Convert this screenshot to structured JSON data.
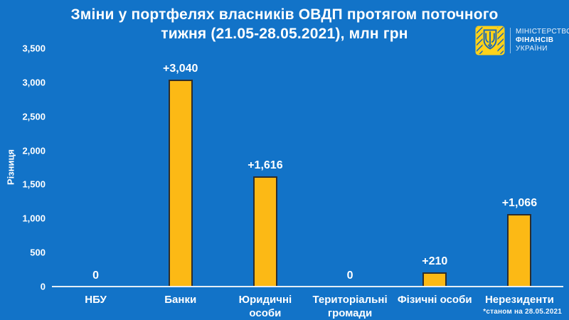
{
  "title": {
    "line1": "Зміни у портфелях власників ОВДП протягом поточного",
    "line2": "тижня (21.05-28.05.2021), млн грн"
  },
  "logo": {
    "ministry_line1": "МІНІСТЕРСТВО",
    "ministry_line2": "ФІНАНСІВ",
    "ministry_line3": "УКРАЇНИ",
    "emblem_icon": "tryzub-shield-emblem"
  },
  "colors": {
    "background": "#1273C8",
    "bar_fill": "#FCB915",
    "bar_border": "#2D2D2D",
    "emblem_yellow": "#FFD21A",
    "emblem_blue": "#1565B8",
    "text": "#FFFFFF",
    "axis_line": "#E3EDF6"
  },
  "chart_data": {
    "type": "bar",
    "title": "Зміни у портфелях власників ОВДП протягом поточного тижня (21.05-28.05.2021), млн грн",
    "ylabel": "Різниця",
    "xlabel": "",
    "ylim": [
      0,
      3500
    ],
    "yticks": [
      0,
      500,
      1000,
      1500,
      2000,
      2500,
      3000,
      3500
    ],
    "ytick_labels": [
      "0",
      "500",
      "1,000",
      "1,500",
      "2,000",
      "2,500",
      "3,000",
      "3,500"
    ],
    "categories": [
      "НБУ",
      "Банки",
      "Юридичні особи",
      "Територіальні громади",
      "Фізичні особи",
      "Нерезиденти"
    ],
    "category_lines": [
      [
        "НБУ"
      ],
      [
        "Банки"
      ],
      [
        "Юридичні",
        "особи"
      ],
      [
        "Територіальні",
        "громади"
      ],
      [
        "Фізичні особи"
      ],
      [
        "Нерезиденти"
      ]
    ],
    "values": [
      0,
      3040,
      1616,
      0,
      210,
      1066
    ],
    "value_labels": [
      "0",
      "+3,040",
      "+1,616",
      "0",
      "+210",
      "+1,066"
    ],
    "grid": false,
    "legend": false,
    "footnote": "*станом на 28.05.2021"
  }
}
